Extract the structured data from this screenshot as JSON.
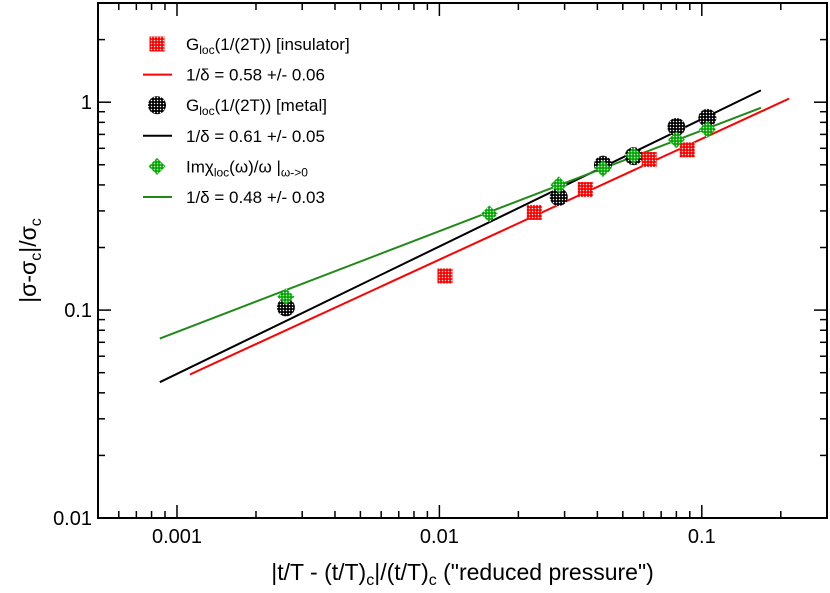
{
  "chart_data": {
    "type": "scatter",
    "x_scale": "log",
    "y_scale": "log",
    "xlim": [
      0.0005,
      0.3
    ],
    "ylim": [
      0.01,
      3
    ],
    "x_ticks": [
      {
        "value": 0.001,
        "label": "0.001"
      },
      {
        "value": 0.01,
        "label": "0.01"
      },
      {
        "value": 0.1,
        "label": "0.1"
      }
    ],
    "y_ticks": [
      {
        "value": 0.01,
        "label": "0.01"
      },
      {
        "value": 0.1,
        "label": "0.1"
      },
      {
        "value": 1,
        "label": "1"
      }
    ],
    "xlabel_parts": [
      {
        "t": "|t/T - (t/T)"
      },
      {
        "t": "c",
        "sub": true
      },
      {
        "t": "|/(t/T)"
      },
      {
        "t": "c",
        "sub": true
      },
      {
        "t": " (\"reduced pressure\")"
      }
    ],
    "ylabel_parts": [
      {
        "t": "|σ-σ"
      },
      {
        "t": "c",
        "sub": true
      },
      {
        "t": "|/σ"
      },
      {
        "t": "c",
        "sub": true
      }
    ],
    "legend_position": "top-left",
    "series": [
      {
        "marker": "square",
        "color": "#ff0000",
        "legend_parts": [
          {
            "t": "G"
          },
          {
            "t": "loc",
            "sub": true
          },
          {
            "t": "(1/(2T)) [insulator]"
          }
        ],
        "points": [
          [
            0.0105,
            0.146
          ],
          [
            0.023,
            0.295
          ],
          [
            0.036,
            0.38
          ],
          [
            0.063,
            0.53
          ],
          [
            0.088,
            0.59
          ]
        ]
      },
      {
        "marker": "line",
        "color": "#ff0000",
        "legend_parts": [
          {
            "t": "1/δ = 0.58 +/- 0.06"
          }
        ],
        "line": [
          [
            0.00112,
            0.049
          ],
          [
            0.215,
            1.04
          ]
        ]
      },
      {
        "marker": "circle",
        "color": "#000000",
        "legend_parts": [
          {
            "t": "G"
          },
          {
            "t": "loc",
            "sub": true
          },
          {
            "t": "(1/(2T)) [metal]"
          }
        ],
        "points": [
          [
            0.0026,
            0.103
          ],
          [
            0.0285,
            0.35
          ],
          [
            0.042,
            0.5
          ],
          [
            0.055,
            0.55
          ],
          [
            0.08,
            0.76
          ],
          [
            0.105,
            0.84
          ]
        ]
      },
      {
        "marker": "line",
        "color": "#000000",
        "legend_parts": [
          {
            "t": "1/δ = 0.61 +/- 0.05"
          }
        ],
        "line": [
          [
            0.00086,
            0.045
          ],
          [
            0.168,
            1.14
          ]
        ]
      },
      {
        "marker": "diamond",
        "color": "#00aa00",
        "legend_parts": [
          {
            "t": "Imχ"
          },
          {
            "t": "loc",
            "sub": true
          },
          {
            "t": "(ω)/ω |"
          },
          {
            "t": "ω->0",
            "sub": true
          }
        ],
        "points": [
          [
            0.0026,
            0.116
          ],
          [
            0.0155,
            0.29
          ],
          [
            0.0285,
            0.4
          ],
          [
            0.042,
            0.48
          ],
          [
            0.055,
            0.555
          ],
          [
            0.08,
            0.66
          ],
          [
            0.105,
            0.74
          ]
        ]
      },
      {
        "marker": "line",
        "color": "#208a18",
        "legend_parts": [
          {
            "t": "1/δ = 0.48 +/- 0.03"
          }
        ],
        "line": [
          [
            0.00086,
            0.073
          ],
          [
            0.168,
            0.94
          ]
        ]
      }
    ]
  }
}
